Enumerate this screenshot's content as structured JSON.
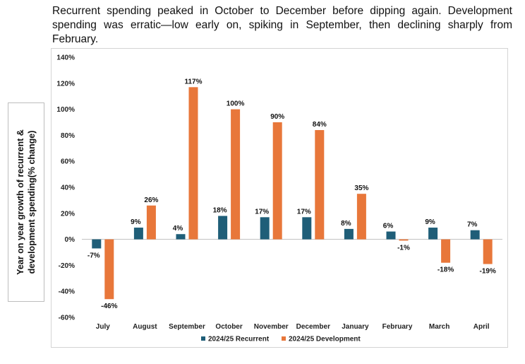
{
  "caption": "Recurrent spending peaked in October to December before dipping again. Development spending was erratic—low early on, spiking in September, then declining sharply from February.",
  "chart_data": {
    "type": "bar",
    "title": "",
    "xlabel": "",
    "ylabel": "Year on year growth of recurrent & development spending(% change)",
    "ylim": [
      -60,
      140
    ],
    "ytick_step": 20,
    "grid": false,
    "legend_position": "bottom",
    "categories": [
      "July",
      "August",
      "September",
      "October",
      "November",
      "December",
      "January",
      "February",
      "March",
      "April"
    ],
    "series": [
      {
        "name": "2024/25 Recurrent",
        "color": "#1f5e78",
        "values": [
          -7,
          9,
          4,
          18,
          17,
          17,
          8,
          6,
          9,
          7
        ]
      },
      {
        "name": "2024/25 Development",
        "color": "#e8773a",
        "values": [
          -46,
          26,
          117,
          100,
          90,
          84,
          35,
          -1,
          -18,
          -19
        ]
      }
    ]
  }
}
